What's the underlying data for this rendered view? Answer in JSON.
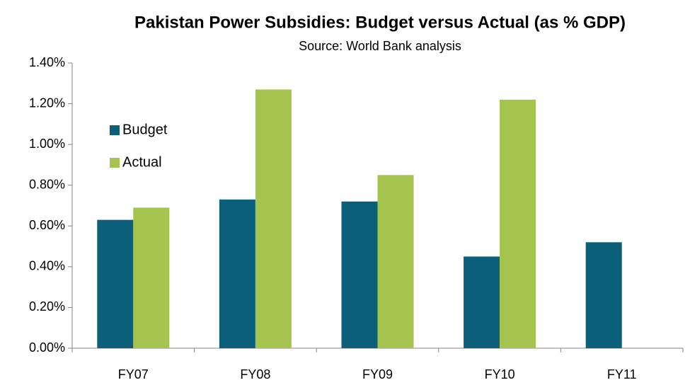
{
  "chart_data": {
    "type": "bar",
    "title": "Pakistan Power Subsidies: Budget versus Actual (as % GDP)",
    "subtitle": "Source: World Bank analysis",
    "categories": [
      "FY07",
      "FY08",
      "FY09",
      "FY10",
      "FY11"
    ],
    "series": [
      {
        "name": "Budget",
        "color": "#0b5f78",
        "values": [
          0.63,
          0.73,
          0.72,
          0.45,
          0.52
        ]
      },
      {
        "name": "Actual",
        "color": "#a5c44f",
        "values": [
          0.69,
          1.27,
          0.85,
          1.22,
          null
        ]
      }
    ],
    "ylim": [
      0,
      1.4
    ],
    "yticks": [
      {
        "value": 0,
        "label": "0.00%"
      },
      {
        "value": 0.2,
        "label": "0.20%"
      },
      {
        "value": 0.4,
        "label": "0.40%"
      },
      {
        "value": 0.6,
        "label": "0.60%"
      },
      {
        "value": 0.8,
        "label": "0.80%"
      },
      {
        "value": 1.0,
        "label": "1.00%"
      },
      {
        "value": 1.2,
        "label": "1.20%"
      },
      {
        "value": 1.4,
        "label": "1.40%"
      }
    ],
    "grid": false,
    "legend": "left"
  }
}
